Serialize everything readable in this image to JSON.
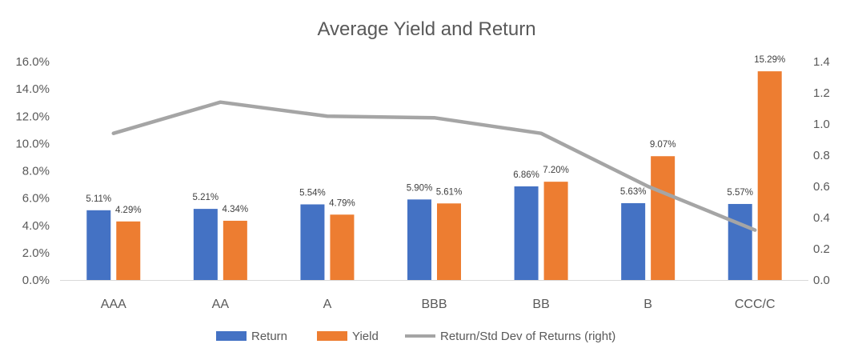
{
  "chart_data": {
    "type": "bar",
    "title": "Average Yield and Return",
    "categories": [
      "AAA",
      "AA",
      "A",
      "BBB",
      "BB",
      "B",
      "CCC/C"
    ],
    "series": [
      {
        "name": "Return",
        "type": "bar",
        "axis": "left",
        "color": "#4472C4",
        "values": [
          5.11,
          5.21,
          5.54,
          5.9,
          6.86,
          5.63,
          5.57
        ],
        "labels": [
          "5.11%",
          "5.21%",
          "5.54%",
          "5.90%",
          "6.86%",
          "5.63%",
          "5.57%"
        ]
      },
      {
        "name": "Yield",
        "type": "bar",
        "axis": "left",
        "color": "#ED7D31",
        "values": [
          4.29,
          4.34,
          4.79,
          5.61,
          7.2,
          9.07,
          15.29
        ],
        "labels": [
          "4.29%",
          "4.34%",
          "4.79%",
          "5.61%",
          "7.20%",
          "9.07%",
          "15.29%"
        ]
      },
      {
        "name": "Return/Std Dev of Returns (right)",
        "type": "line",
        "axis": "right",
        "color": "#A5A5A5",
        "values": [
          0.94,
          1.14,
          1.05,
          1.04,
          0.94,
          0.6,
          0.32
        ]
      }
    ],
    "y_left": {
      "ylim": [
        0,
        16
      ],
      "ticks": [
        "0.0%",
        "2.0%",
        "4.0%",
        "6.0%",
        "8.0%",
        "10.0%",
        "12.0%",
        "14.0%",
        "16.0%"
      ]
    },
    "y_right": {
      "ylim": [
        0,
        1.4
      ],
      "ticks": [
        "0.0",
        "0.2",
        "0.4",
        "0.6",
        "0.8",
        "1.0",
        "1.2",
        "1.4"
      ]
    },
    "grid": false,
    "legend_position": "bottom"
  }
}
